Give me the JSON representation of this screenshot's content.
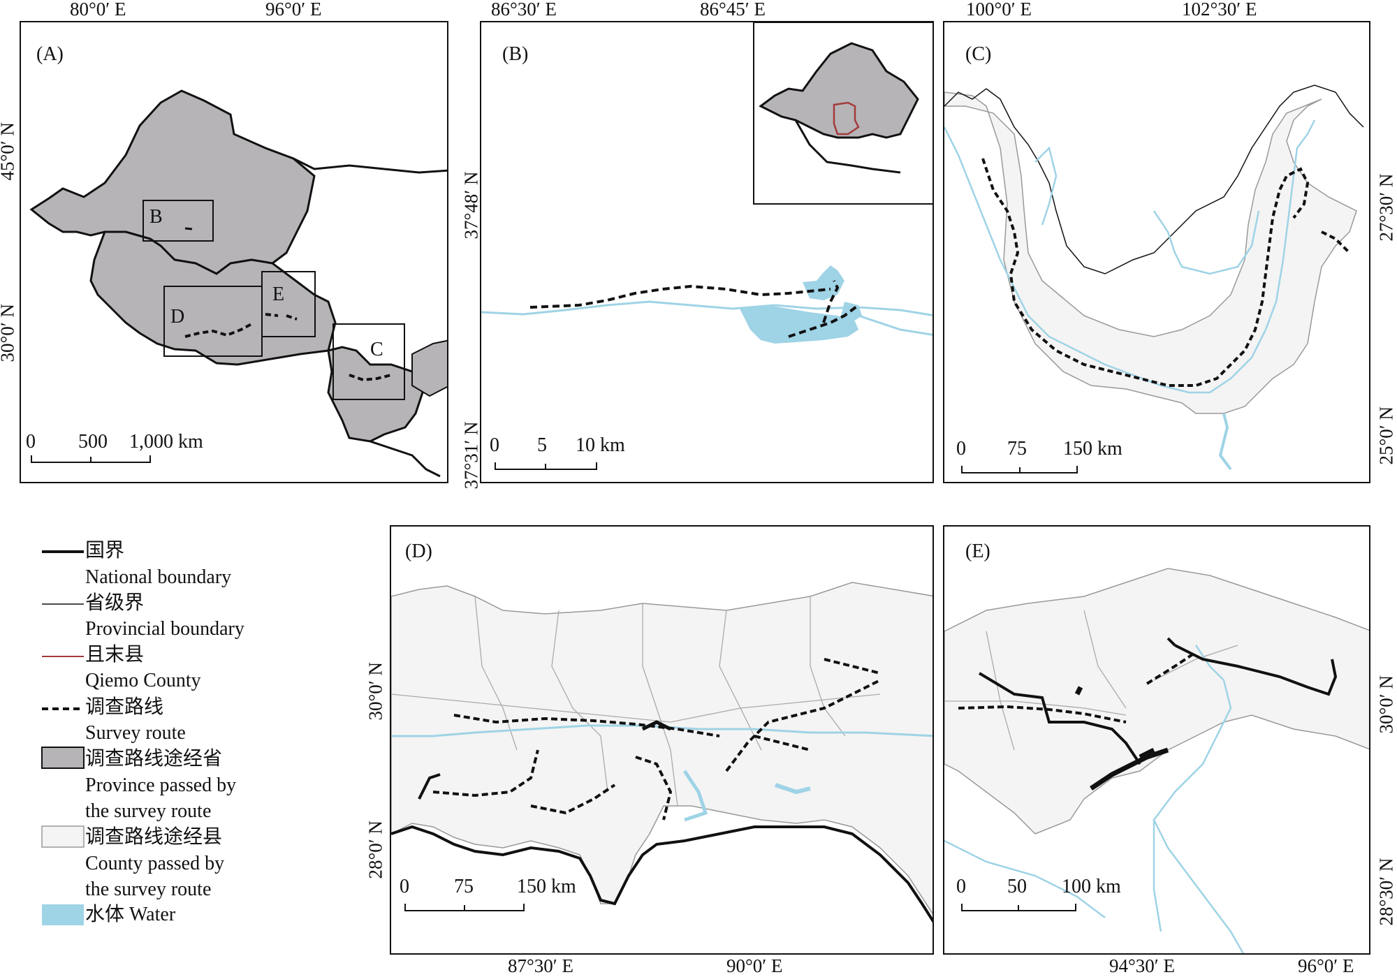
{
  "colors": {
    "national": "#111111",
    "provincial": "#333333",
    "qiemo": "#a33a3a",
    "province_fill": "#b6b4b7",
    "county_fill": "#f4f4f4",
    "water": "#9fd3e6"
  },
  "panels": {
    "a": {
      "label": "(A)",
      "top_ticks": [
        "80°0′ E",
        "96°0′ E"
      ],
      "left_ticks": [
        "45°0′ N",
        "30°0′ N"
      ],
      "scale": [
        "0",
        "500",
        "1,000 km"
      ],
      "boxes": [
        "B",
        "D",
        "E",
        "C"
      ]
    },
    "b": {
      "label": "(B)",
      "top_ticks": [
        "86°30′ E",
        "86°45′ E"
      ],
      "left_ticks": [
        "37°48′ N",
        "37°31′ N"
      ],
      "scale": [
        "0",
        "5",
        "10 km"
      ]
    },
    "c": {
      "label": "(C)",
      "top_ticks": [
        "100°0′ E",
        "102°30′ E"
      ],
      "right_ticks": [
        "27°30′ N",
        "25°0′ N"
      ],
      "scale": [
        "0",
        "75",
        "150 km"
      ]
    },
    "d": {
      "label": "(D)",
      "bottom_ticks": [
        "87°30′ E",
        "90°0′ E"
      ],
      "left_ticks": [
        "30°0′ N",
        "28°0′ N"
      ],
      "scale": [
        "0",
        "75",
        "150 km"
      ]
    },
    "e": {
      "label": "(E)",
      "bottom_ticks": [
        "94°30′ E",
        "96°0′ E"
      ],
      "right_ticks": [
        "30°0′ N",
        "28°30′ N"
      ],
      "scale": [
        "0",
        "50",
        "100 km"
      ]
    }
  },
  "legend": [
    {
      "zh": "国界",
      "en": [
        "National boundary"
      ],
      "symbol": "national-line"
    },
    {
      "zh": "省级界",
      "en": [
        "Provincial boundary"
      ],
      "symbol": "provincial-line"
    },
    {
      "zh": "且末县",
      "en": [
        "Qiemo County"
      ],
      "symbol": "qiemo-line"
    },
    {
      "zh": "调查路线",
      "en": [
        "Survey route"
      ],
      "symbol": "survey-dash"
    },
    {
      "zh": "调查路线途经省",
      "en": [
        "Province passed by",
        "the survey route"
      ],
      "symbol": "province-fill"
    },
    {
      "zh": "调查路线途经县",
      "en": [
        "County passed by",
        "the survey route"
      ],
      "symbol": "county-fill"
    },
    {
      "zh": "水体 Water",
      "en": [],
      "symbol": "water-fill"
    }
  ]
}
